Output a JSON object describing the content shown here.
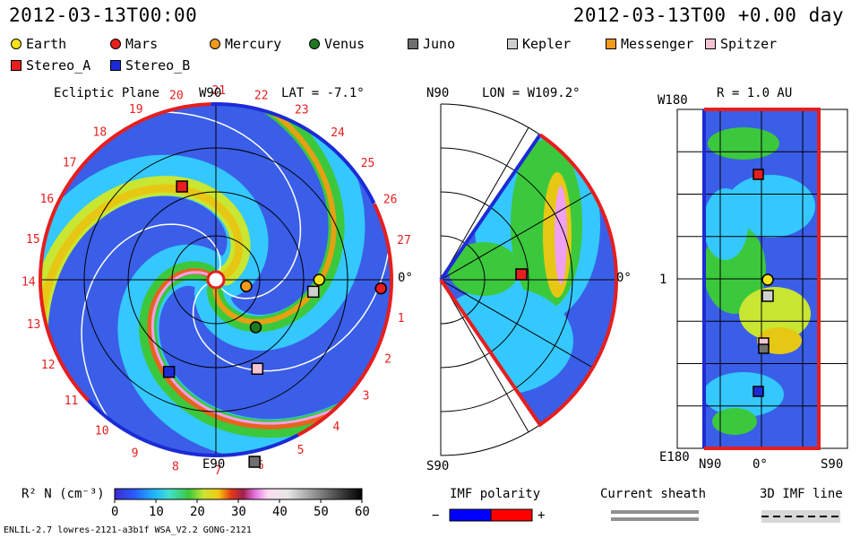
{
  "header": {
    "datetime": "2012-03-13T00:00",
    "run_time": "2012-03-13T00 +0.00 day"
  },
  "legend": [
    {
      "name": "Earth",
      "shape": "circle",
      "color": "#f5e21b"
    },
    {
      "name": "Mars",
      "shape": "circle",
      "color": "#e61e1e"
    },
    {
      "name": "Mercury",
      "shape": "circle",
      "color": "#f29a1c"
    },
    {
      "name": "Venus",
      "shape": "circle",
      "color": "#1f7a1f"
    },
    {
      "name": "Juno",
      "shape": "square",
      "color": "#707070"
    },
    {
      "name": "Kepler",
      "shape": "square",
      "color": "#cfcfcf"
    },
    {
      "name": "Messenger",
      "shape": "square",
      "color": "#f29a1c"
    },
    {
      "name": "Spitzer",
      "shape": "square",
      "color": "#f3c3d3"
    },
    {
      "name": "Stereo_A",
      "shape": "square",
      "color": "#e61e1e"
    },
    {
      "name": "Stereo_B",
      "shape": "square",
      "color": "#1c2bd6"
    }
  ],
  "panels": {
    "ecliptic": {
      "title": "Ecliptic Plane",
      "top_label": "W90",
      "lat_label": "LAT = -7.1°",
      "bottom_label": "E90",
      "right_label": "0°"
    },
    "meridional": {
      "top_label": "N90",
      "lon_label": "LON = W109.2°",
      "bottom_label": "S90",
      "right_label": "0°"
    },
    "radial": {
      "r_label": "R = 1.0 AU",
      "top_left": "W180",
      "mid_left": "1",
      "bottom_left": "E180",
      "x_left": "N90",
      "x_mid": "0°",
      "x_right": "S90"
    }
  },
  "colorbar": {
    "label": "R² N (cm⁻³)",
    "ticks": [
      "0",
      "10",
      "20",
      "30",
      "40",
      "50",
      "60"
    ]
  },
  "imf": {
    "label": "IMF polarity",
    "minus": "−",
    "plus": "+",
    "neg_color": "#0000ff",
    "pos_color": "#ff0000"
  },
  "sheath": {
    "label": "Current sheath"
  },
  "imf3d": {
    "label": "3D IMF line"
  },
  "footer": {
    "model": "ENLIL-2.7 lowres-2121-a3b1f WSA_V2.2 GONG-2121"
  },
  "chart_data": {
    "type": "heatmap",
    "quantity": "Solar wind density R² N",
    "units": "cm⁻³",
    "colorbar_range": [
      0,
      60
    ],
    "ecliptic_plane": {
      "sector_numbers": [
        "1",
        "2",
        "3",
        "4",
        "5",
        "6",
        "7",
        "8",
        "9",
        "10",
        "11",
        "12",
        "13",
        "14",
        "15",
        "16",
        "17",
        "18",
        "19",
        "20",
        "21",
        "22",
        "23",
        "24",
        "25",
        "26",
        "27"
      ],
      "objects": [
        {
          "name": "Earth",
          "lon_deg": 0,
          "r_au": 1.0
        },
        {
          "name": "Mars",
          "lon_deg": -3,
          "r_au": 1.6
        },
        {
          "name": "Mercury",
          "lon_deg": -12,
          "r_au": 0.3
        },
        {
          "name": "Venus",
          "lon_deg": -50,
          "r_au": 0.6
        },
        {
          "name": "Kepler",
          "lon_deg": -7,
          "r_au": 0.95
        },
        {
          "name": "Spitzer",
          "lon_deg": -65,
          "r_au": 0.95
        },
        {
          "name": "Juno",
          "lon_deg": -78,
          "r_au": 1.8
        },
        {
          "name": "Stereo_A",
          "lon_deg": 110,
          "r_au": 0.96
        },
        {
          "name": "Stereo_B",
          "lon_deg": -117,
          "r_au": 1.0
        }
      ]
    }
  }
}
